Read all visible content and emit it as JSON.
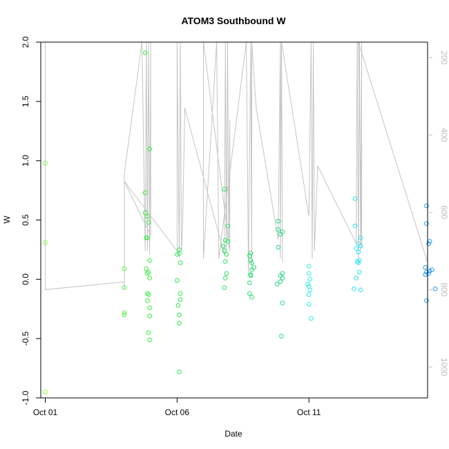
{
  "chart_data": {
    "type": "scatter",
    "title": "ATOM3 Southbound W",
    "xlabel": "Date",
    "ylabel": "W",
    "xlim": [
      "2017-09-30T19:55",
      "2017-10-15T12:00"
    ],
    "ylim": [
      -1.0,
      2.0
    ],
    "x_ticks": [
      {
        "date": "2017-10-01T00:00",
        "label": "Oct 01"
      },
      {
        "date": "2017-10-06T00:00",
        "label": "Oct 06"
      },
      {
        "date": "2017-10-11T00:00",
        "label": "Oct 11"
      }
    ],
    "y_ticks": [
      {
        "value": 2.0,
        "label": "2.0"
      },
      {
        "value": 1.5,
        "label": "1.5"
      },
      {
        "value": 1.0,
        "label": "1.0"
      },
      {
        "value": 0.5,
        "label": "0.5"
      },
      {
        "value": 0.0,
        "label": "0.0"
      },
      {
        "value": -0.5,
        "label": "-0.5"
      },
      {
        "value": -1.0,
        "label": "-1.0"
      }
    ],
    "y2_ticks": [
      {
        "value": 200,
        "label": "200"
      },
      {
        "value": 400,
        "label": "400"
      },
      {
        "value": 600,
        "label": "600"
      },
      {
        "value": 800,
        "label": "800"
      },
      {
        "value": 1000,
        "label": "1000"
      }
    ],
    "y2lim": [
      1080,
      160
    ],
    "y2_axis_color": "#bdbdbd",
    "line_color": "#c4c4c4",
    "grid": false,
    "line": [
      [
        "2017-10-01T00:00",
        160
      ],
      [
        "2017-10-01T00:00",
        780
      ],
      [
        "2017-10-01T00:00",
        800
      ],
      [
        "2017-10-04T00:00",
        780
      ],
      [
        "2017-10-04T00:00",
        520
      ],
      [
        "2017-10-04T00:00",
        800
      ],
      [
        "2017-10-04T00:00",
        540
      ],
      [
        "2017-10-04T00:00",
        560
      ],
      [
        "2017-10-04T00:00",
        500
      ],
      [
        "2017-10-04T16:00",
        160
      ],
      [
        "2017-10-04T19:00",
        700
      ],
      [
        "2017-10-04T20:00",
        160
      ],
      [
        "2017-10-04T21:00",
        700
      ],
      [
        "2017-10-04T22:00",
        160
      ],
      [
        "2017-10-04T23:00",
        710
      ],
      [
        "2017-10-05T00:00",
        160
      ],
      [
        "2017-10-05T00:00",
        660
      ],
      [
        "2017-10-04T00:00",
        520
      ],
      [
        "2017-10-06T00:00",
        700
      ],
      [
        "2017-10-06T00:00",
        160
      ],
      [
        "2017-10-06T02:00",
        720
      ],
      [
        "2017-10-06T03:00",
        160
      ],
      [
        "2017-10-06T04:00",
        700
      ],
      [
        "2017-10-06T05:00",
        640
      ],
      [
        "2017-10-06T07:00",
        330
      ],
      [
        "2017-10-07T19:00",
        710
      ],
      [
        "2017-10-07T20:00",
        160
      ],
      [
        "2017-10-07T21:00",
        700
      ],
      [
        "2017-10-07T22:00",
        160
      ],
      [
        "2017-10-07T23:00",
        690
      ],
      [
        "2017-10-08T00:00",
        360
      ],
      [
        "2017-10-08T00:00",
        700
      ],
      [
        "2017-10-07T00:00",
        160
      ],
      [
        "2017-10-07T00:00",
        720
      ],
      [
        "2017-10-07T12:00",
        160
      ],
      [
        "2017-10-07T14:00",
        720
      ],
      [
        "2017-10-08T15:00",
        160
      ],
      [
        "2017-10-08T17:00",
        760
      ],
      [
        "2017-10-08T19:00",
        160
      ],
      [
        "2017-10-08T20:00",
        750
      ],
      [
        "2017-10-08T20:00",
        160
      ],
      [
        "2017-10-09T00:00",
        330
      ],
      [
        "2017-10-09T20:00",
        670
      ],
      [
        "2017-10-09T22:00",
        160
      ],
      [
        "2017-10-09T22:00",
        720
      ],
      [
        "2017-10-09T23:00",
        160
      ],
      [
        "2017-10-10T00:00",
        730
      ],
      [
        "2017-10-09T23:00",
        160
      ],
      [
        "2017-10-11T00:00",
        610
      ],
      [
        "2017-10-11T02:00",
        160
      ],
      [
        "2017-10-11T03:00",
        720
      ],
      [
        "2017-10-11T04:00",
        160
      ],
      [
        "2017-10-11T05:00",
        700
      ],
      [
        "2017-10-11T08:00",
        480
      ],
      [
        "2017-10-12T19:00",
        680
      ],
      [
        "2017-10-12T20:00",
        160
      ],
      [
        "2017-10-12T21:00",
        720
      ],
      [
        "2017-10-12T22:00",
        160
      ],
      [
        "2017-10-12T23:00",
        700
      ],
      [
        "2017-10-13T00:00",
        160
      ],
      [
        "2017-10-13T00:00",
        690
      ],
      [
        "2017-10-12T21:00",
        160
      ],
      [
        "2017-10-15T12:00",
        730
      ],
      [
        "2017-10-15T16:00",
        160
      ],
      [
        "2017-10-15T18:00",
        720
      ],
      [
        "2017-10-15T19:00",
        160
      ]
    ],
    "series": [
      {
        "color": "#7cfc3c",
        "points": [
          [
            "2017-10-01T00:00",
            0.98
          ],
          [
            "2017-10-01T00:00",
            0.31
          ],
          [
            "2017-10-01T00:00",
            -0.95
          ]
        ]
      },
      {
        "color": "#4cf53c",
        "points": [
          [
            "2017-10-04T00:00",
            0.09
          ],
          [
            "2017-10-04T00:00",
            -0.07
          ],
          [
            "2017-10-04T00:00",
            -0.28
          ],
          [
            "2017-10-04T00:00",
            -0.3
          ]
        ]
      },
      {
        "color": "#31ee3a",
        "points": [
          [
            "2017-10-04T19:00",
            1.91
          ],
          [
            "2017-10-04T19:00",
            0.73
          ],
          [
            "2017-10-04T19:00",
            0.56
          ],
          [
            "2017-10-04T20:00",
            0.35
          ],
          [
            "2017-10-04T20:00",
            0.09
          ],
          [
            "2017-10-04T21:00",
            0.53
          ],
          [
            "2017-10-04T21:00",
            0.35
          ],
          [
            "2017-10-04T21:00",
            0.05
          ],
          [
            "2017-10-04T22:00",
            0.48
          ],
          [
            "2017-10-04T22:00",
            0.06
          ],
          [
            "2017-10-04T22:00",
            -0.13
          ],
          [
            "2017-10-04T21:00",
            -0.12
          ],
          [
            "2017-10-04T21:00",
            -0.18
          ],
          [
            "2017-10-04T23:00",
            1.1
          ],
          [
            "2017-10-04T23:00",
            0.16
          ],
          [
            "2017-10-04T23:00",
            0.01
          ],
          [
            "2017-10-04T23:00",
            -0.24
          ],
          [
            "2017-10-04T23:00",
            -0.31
          ],
          [
            "2017-10-04T22:00",
            -0.45
          ],
          [
            "2017-10-04T23:00",
            -0.51
          ]
        ]
      },
      {
        "color": "#2ae84c",
        "points": [
          [
            "2017-10-06T02:00",
            0.25
          ],
          [
            "2017-10-06T00:00",
            0.21
          ],
          [
            "2017-10-06T02:00",
            0.22
          ],
          [
            "2017-10-06T03:00",
            0.14
          ],
          [
            "2017-10-06T00:00",
            -0.01
          ],
          [
            "2017-10-06T03:00",
            -0.12
          ],
          [
            "2017-10-06T03:00",
            -0.17
          ],
          [
            "2017-10-06T01:00",
            -0.22
          ],
          [
            "2017-10-06T02:00",
            -0.3
          ],
          [
            "2017-10-06T02:00",
            -0.37
          ],
          [
            "2017-10-06T02:00",
            -0.78
          ]
        ]
      },
      {
        "color": "#27e35a",
        "points": [
          [
            "2017-10-07T19:00",
            0.76
          ],
          [
            "2017-10-07T22:00",
            0.45
          ],
          [
            "2017-10-07T20:00",
            0.33
          ],
          [
            "2017-10-07T22:00",
            0.32
          ],
          [
            "2017-10-07T18:00",
            0.28
          ],
          [
            "2017-10-07T19:00",
            0.24
          ],
          [
            "2017-10-07T21:00",
            0.21
          ],
          [
            "2017-10-07T20:00",
            0.15
          ],
          [
            "2017-10-07T21:00",
            0.05
          ],
          [
            "2017-10-07T20:00",
            0.01
          ],
          [
            "2017-10-07T19:00",
            -0.07
          ]
        ]
      },
      {
        "color": "#25de6e",
        "points": [
          [
            "2017-10-08T19:00",
            0.22
          ],
          [
            "2017-10-08T18:00",
            0.2
          ],
          [
            "2017-10-08T19:00",
            0.16
          ],
          [
            "2017-10-08T20:00",
            0.14
          ],
          [
            "2017-10-08T22:00",
            0.1
          ],
          [
            "2017-10-08T20:00",
            0.08
          ],
          [
            "2017-10-08T19:00",
            0.04
          ],
          [
            "2017-10-08T19:00",
            0.03
          ],
          [
            "2017-10-08T18:00",
            -0.03
          ],
          [
            "2017-10-08T18:00",
            -0.12
          ],
          [
            "2017-10-08T20:00",
            -0.15
          ]
        ]
      },
      {
        "color": "#23d983",
        "points": [
          [
            "2017-10-09T20:00",
            0.49
          ],
          [
            "2017-10-09T20:00",
            0.42
          ],
          [
            "2017-10-10T00:00",
            0.4
          ],
          [
            "2017-10-09T22:00",
            0.38
          ],
          [
            "2017-10-09T20:00",
            0.27
          ],
          [
            "2017-10-10T00:00",
            0.05
          ],
          [
            "2017-10-09T22:00",
            0.03
          ],
          [
            "2017-10-10T00:00",
            0.01
          ],
          [
            "2017-10-09T22:00",
            -0.02
          ],
          [
            "2017-10-09T19:00",
            -0.04
          ],
          [
            "2017-10-10T00:00",
            -0.2
          ],
          [
            "2017-10-09T23:00",
            -0.48
          ]
        ]
      },
      {
        "color": "#27f0e0",
        "points": [
          [
            "2017-10-11T00:00",
            0.11
          ],
          [
            "2017-10-11T00:00",
            0.05
          ],
          [
            "2017-10-11T01:00",
            0.0
          ],
          [
            "2017-10-10T23:00",
            -0.04
          ],
          [
            "2017-10-11T00:00",
            -0.06
          ],
          [
            "2017-10-11T01:00",
            -0.09
          ],
          [
            "2017-10-11T00:00",
            -0.13
          ],
          [
            "2017-10-11T00:00",
            -0.21
          ],
          [
            "2017-10-11T02:00",
            -0.33
          ]
        ]
      },
      {
        "color": "#26e4ef",
        "points": [
          [
            "2017-10-12T18:00",
            0.68
          ],
          [
            "2017-10-12T18:00",
            0.45
          ],
          [
            "2017-10-12T23:00",
            0.35
          ],
          [
            "2017-10-12T21:00",
            0.3
          ],
          [
            "2017-10-12T23:00",
            0.28
          ],
          [
            "2017-10-12T19:00",
            0.26
          ],
          [
            "2017-10-12T21:00",
            0.23
          ],
          [
            "2017-10-12T20:00",
            0.15
          ],
          [
            "2017-10-12T22:00",
            0.16
          ],
          [
            "2017-10-12T21:00",
            0.14
          ],
          [
            "2017-10-12T22:00",
            0.06
          ],
          [
            "2017-10-12T19:00",
            0.01
          ],
          [
            "2017-10-12T17:00",
            -0.08
          ],
          [
            "2017-10-12T23:00",
            -0.09
          ]
        ]
      },
      {
        "color": "#1b9bee",
        "points": [
          [
            "2017-10-15T11:00",
            0.62
          ],
          [
            "2017-10-15T11:00",
            0.47
          ],
          [
            "2017-10-15T14:00",
            0.32
          ],
          [
            "2017-10-15T13:00",
            0.3
          ],
          [
            "2017-10-15T10:00",
            0.1
          ],
          [
            "2017-10-15T16:00",
            0.08
          ],
          [
            "2017-10-15T14:00",
            0.07
          ],
          [
            "2017-10-15T11:00",
            0.06
          ],
          [
            "2017-10-15T13:00",
            0.05
          ],
          [
            "2017-10-15T10:00",
            0.04
          ],
          [
            "2017-10-15T19:00",
            -0.08
          ],
          [
            "2017-10-15T11:00",
            -0.18
          ]
        ]
      }
    ]
  }
}
